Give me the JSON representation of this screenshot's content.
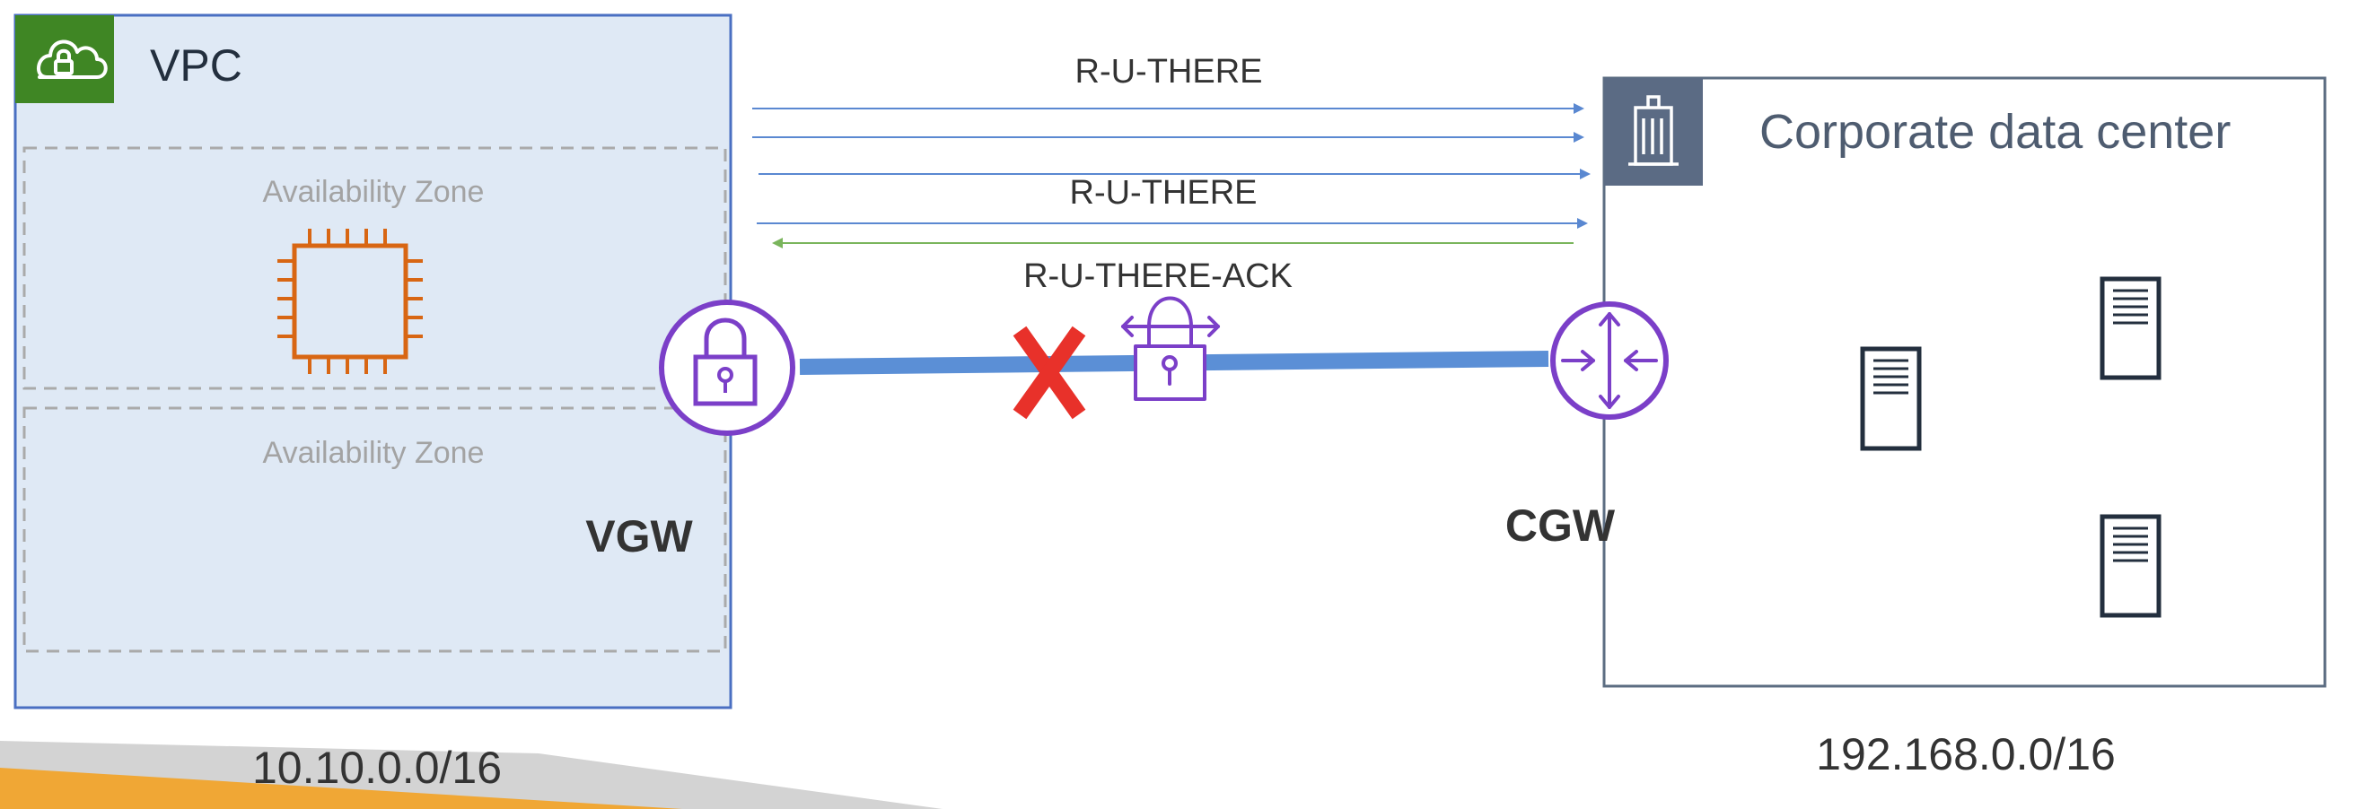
{
  "vpc": {
    "title": "VPC",
    "cidr": "10.10.0.0/16",
    "availability_zones": [
      "Availability Zone",
      "Availability Zone"
    ],
    "gateway_label": "VGW"
  },
  "corporate": {
    "title": "Corporate data center",
    "cidr": "192.168.0.0/16",
    "gateway_label": "CGW"
  },
  "messages": {
    "r_u_there_1": "R-U-THERE",
    "r_u_there_2": "R-U-THERE",
    "r_u_there_ack": "R-U-THERE-ACK"
  },
  "icons": [
    "vpc-cloud-lock-icon",
    "ec2-chip-icon",
    "vgw-lock-icon",
    "failure-x-icon",
    "vpn-lock-icon",
    "cgw-router-icon",
    "building-icon",
    "server-icon"
  ],
  "colors": {
    "vpc_fill": "#dfe9f5",
    "vpc_border": "#4a6fc2",
    "vpc_badge": "#3f8624",
    "ec2_orange": "#d86613",
    "gateway_purple": "#7b3fc8",
    "tunnel_blue": "#5b8fd6",
    "request_arrow": "#5a88d1",
    "ack_arrow": "#7ab55c",
    "failure_red": "#e8312a",
    "corporate_border": "#5c6d82",
    "corporate_badge": "#5b6b84",
    "footer_orange": "#f0a735"
  }
}
